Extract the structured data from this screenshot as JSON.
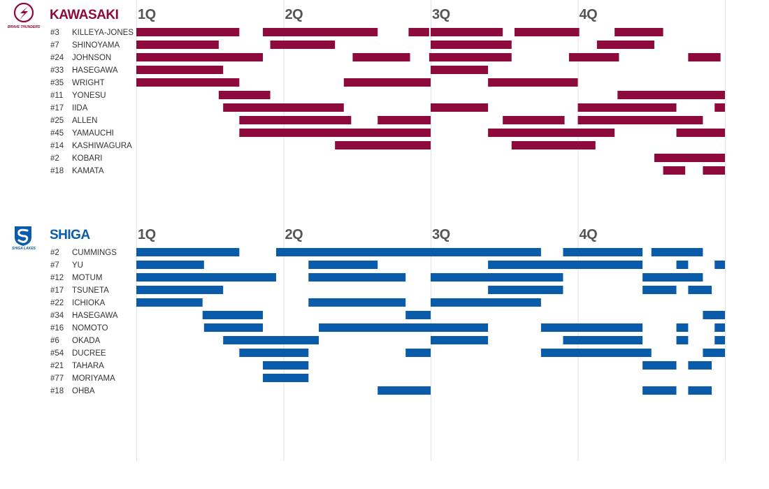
{
  "chart_data": {
    "type": "timeline",
    "x_unit": "game minutes",
    "xlim": [
      0,
      40
    ],
    "quarters": [
      "1Q",
      "2Q",
      "3Q",
      "4Q"
    ],
    "quarter_starts": [
      0,
      10,
      20,
      30
    ],
    "grid": true,
    "teams": [
      {
        "name": "KAWASAKI",
        "logo_text": "BRAVE THUNDERS",
        "color": "#8c0b3c",
        "players": [
          {
            "number": "#3",
            "name": "KILLEYA-JONES",
            "stints": [
              [
                0,
                7
              ],
              [
                8.6,
                16.4
              ],
              [
                18.5,
                19.9
              ],
              [
                20,
                24.9
              ],
              [
                25.7,
                30.1
              ],
              [
                32.5,
                35.8
              ]
            ]
          },
          {
            "number": "#7",
            "name": "SHINOYAMA",
            "stints": [
              [
                0,
                5.6
              ],
              [
                9.1,
                13.5
              ],
              [
                20,
                25.5
              ],
              [
                31.3,
                35.2
              ]
            ]
          },
          {
            "number": "#24",
            "name": "JOHNSON",
            "stints": [
              [
                0,
                8.6
              ],
              [
                14.7,
                18.6
              ],
              [
                19.9,
                25.5
              ],
              [
                29.4,
                32.8
              ],
              [
                37.5,
                39.7
              ]
            ]
          },
          {
            "number": "#33",
            "name": "HASEGAWA",
            "stints": [
              [
                0,
                5.9
              ],
              [
                20,
                23.9
              ]
            ]
          },
          {
            "number": "#35",
            "name": "WRIGHT",
            "stints": [
              [
                0,
                7
              ],
              [
                14.1,
                20
              ],
              [
                23.9,
                30
              ]
            ]
          },
          {
            "number": "#11",
            "name": "YONESU",
            "stints": [
              [
                5.6,
                9.1
              ],
              [
                32.7,
                40
              ]
            ]
          },
          {
            "number": "#17",
            "name": "IIDA",
            "stints": [
              [
                5.9,
                14.1
              ],
              [
                20,
                23.9
              ],
              [
                30,
                36.7
              ],
              [
                39.3,
                40
              ]
            ]
          },
          {
            "number": "#25",
            "name": "ALLEN",
            "stints": [
              [
                7,
                14.6
              ],
              [
                16.4,
                20
              ],
              [
                24.9,
                29.1
              ],
              [
                30,
                38.5
              ]
            ]
          },
          {
            "number": "#45",
            "name": "YAMAUCHI",
            "stints": [
              [
                7,
                20
              ],
              [
                23.9,
                32.5
              ],
              [
                36.7,
                40
              ]
            ]
          },
          {
            "number": "#14",
            "name": "KASHIWAGURA",
            "stints": [
              [
                13.5,
                20
              ],
              [
                25.5,
                31.2
              ]
            ]
          },
          {
            "number": "#2",
            "name": "KOBARI",
            "stints": [
              [
                35.2,
                40
              ]
            ]
          },
          {
            "number": "#18",
            "name": "KAMATA",
            "stints": [
              [
                35.8,
                37.3
              ],
              [
                38.5,
                40
              ]
            ]
          }
        ]
      },
      {
        "name": "SHIGA",
        "logo_text": "SHIGA LAKES",
        "color": "#0a5cab",
        "players": [
          {
            "number": "#2",
            "name": "CUMMINGS",
            "stints": [
              [
                0,
                7
              ],
              [
                9.5,
                27.5
              ],
              [
                29,
                34.4
              ],
              [
                35,
                38.5
              ]
            ]
          },
          {
            "number": "#7",
            "name": "YU",
            "stints": [
              [
                0,
                4.6
              ],
              [
                11.7,
                16.4
              ],
              [
                23.9,
                34.4
              ],
              [
                36.7,
                37.5
              ],
              [
                39.3,
                40
              ]
            ]
          },
          {
            "number": "#12",
            "name": "MOTUM",
            "stints": [
              [
                0,
                9.5
              ],
              [
                11.7,
                18.3
              ],
              [
                20,
                29
              ],
              [
                34.4,
                38.5
              ]
            ]
          },
          {
            "number": "#17",
            "name": "TSUNETA",
            "stints": [
              [
                0,
                5.9
              ],
              [
                23.9,
                29
              ],
              [
                34.4,
                36.7
              ],
              [
                37.5,
                39.1
              ]
            ]
          },
          {
            "number": "#22",
            "name": "ICHIOKA",
            "stints": [
              [
                0,
                4.5
              ],
              [
                11.7,
                18.3
              ],
              [
                20,
                27.5
              ]
            ]
          },
          {
            "number": "#34",
            "name": "HASEGAWA",
            "stints": [
              [
                4.5,
                8.6
              ],
              [
                18.3,
                20
              ],
              [
                38.5,
                40
              ]
            ]
          },
          {
            "number": "#16",
            "name": "NOMOTO",
            "stints": [
              [
                4.6,
                8.6
              ],
              [
                12.4,
                23.9
              ],
              [
                27.5,
                34.4
              ],
              [
                36.7,
                37.5
              ],
              [
                39.3,
                40
              ]
            ]
          },
          {
            "number": "#6",
            "name": "OKADA",
            "stints": [
              [
                5.9,
                12.4
              ],
              [
                20,
                23.9
              ],
              [
                29,
                34.4
              ],
              [
                36.7,
                37.5
              ],
              [
                39.3,
                40
              ]
            ]
          },
          {
            "number": "#54",
            "name": "DUCREE",
            "stints": [
              [
                7,
                11.7
              ],
              [
                18.3,
                20
              ],
              [
                27.5,
                35
              ],
              [
                38.5,
                40
              ]
            ]
          },
          {
            "number": "#21",
            "name": "TAHARA",
            "stints": [
              [
                8.6,
                11.7
              ],
              [
                34.4,
                36.7
              ],
              [
                37.5,
                39.1
              ]
            ]
          },
          {
            "number": "#77",
            "name": "MORIYAMA",
            "stints": [
              [
                8.6,
                11.7
              ]
            ]
          },
          {
            "number": "#18",
            "name": "OHBA",
            "stints": [
              [
                16.4,
                20
              ],
              [
                34.4,
                36.7
              ],
              [
                37.5,
                39.1
              ]
            ]
          }
        ]
      }
    ]
  }
}
